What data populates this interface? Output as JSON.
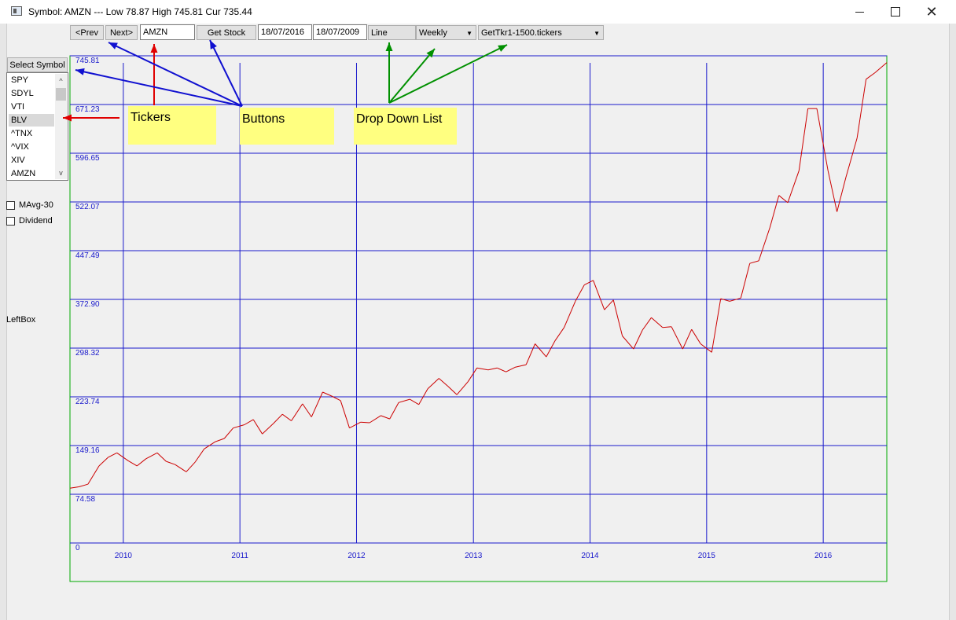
{
  "window": {
    "title": "Symbol:  AMZN  --- Low 78.87 High 745.81 Cur 735.44",
    "minimize_glyph": "",
    "maximize_glyph": "",
    "close_glyph": "✕"
  },
  "toolbar": {
    "prev_label": "<Prev",
    "next_label": "Next>",
    "ticker_value": "AMZN",
    "get_stock_label": "Get Stock",
    "end_date_value": "18/07/2016",
    "start_date_value": "18/07/2009",
    "chart_type_selected": "Line",
    "period_selected": "Weekly",
    "ticker_file_selected": "GetTkr1-1500.tickers"
  },
  "left_panel": {
    "select_symbol_label": "Select Symbol",
    "tickers": [
      "SPY",
      "SDYL",
      "VTI",
      "BLV",
      "^TNX",
      "^VIX",
      "XIV",
      "AMZN"
    ],
    "selected_ticker": "BLV",
    "options": [
      {
        "label": "MAvg-30",
        "checked": false
      },
      {
        "label": "Dividend",
        "checked": false
      }
    ],
    "leftbox_label": "LeftBox"
  },
  "annotations": {
    "tickers_label": "Tickers",
    "buttons_label": "Buttons",
    "dropdown_label": "Drop Down List",
    "colors": {
      "tickers": "#e00000",
      "buttons": "#1010d0",
      "dropdown": "#009000",
      "fill": "#ffff80"
    }
  },
  "chart_data": {
    "type": "line",
    "title": "",
    "xlabel": "",
    "ylabel": "",
    "ylim": [
      0,
      745.81
    ],
    "y_ticks": [
      "0",
      "74.58",
      "149.16",
      "223.74",
      "298.32",
      "372.90",
      "447.49",
      "522.07",
      "596.65",
      "671.23",
      "745.81"
    ],
    "x_ticks": [
      "2010",
      "2011",
      "2012",
      "2013",
      "2014",
      "2015",
      "2016"
    ],
    "x_range": [
      "2009-07-18",
      "2016-07-18"
    ],
    "grid": true,
    "colors": {
      "line": "#cc0000",
      "grid": "#1a1acc",
      "tick_text": "#1a1acc",
      "frame": "#00aa00"
    },
    "series": [
      {
        "name": "",
        "points": [
          [
            "2009-07-18",
            84
          ],
          [
            "2009-08-15",
            86
          ],
          [
            "2009-09-12",
            90
          ],
          [
            "2009-10-17",
            118
          ],
          [
            "2009-11-14",
            131
          ],
          [
            "2009-12-12",
            138
          ],
          [
            "2010-01-16",
            126
          ],
          [
            "2010-02-13",
            118
          ],
          [
            "2010-03-13",
            129
          ],
          [
            "2010-04-17",
            138
          ],
          [
            "2010-05-15",
            125
          ],
          [
            "2010-06-12",
            120
          ],
          [
            "2010-07-17",
            109
          ],
          [
            "2010-08-14",
            124
          ],
          [
            "2010-09-11",
            144
          ],
          [
            "2010-10-16",
            155
          ],
          [
            "2010-11-13",
            160
          ],
          [
            "2010-12-11",
            176
          ],
          [
            "2011-01-15",
            181
          ],
          [
            "2011-02-12",
            189
          ],
          [
            "2011-03-12",
            167
          ],
          [
            "2011-04-16",
            183
          ],
          [
            "2011-05-14",
            197
          ],
          [
            "2011-06-11",
            187
          ],
          [
            "2011-07-16",
            213
          ],
          [
            "2011-08-13",
            193
          ],
          [
            "2011-09-17",
            231
          ],
          [
            "2011-10-15",
            225
          ],
          [
            "2011-11-12",
            218
          ],
          [
            "2011-12-10",
            176
          ],
          [
            "2012-01-14",
            185
          ],
          [
            "2012-02-11",
            184
          ],
          [
            "2012-03-17",
            195
          ],
          [
            "2012-04-14",
            190
          ],
          [
            "2012-05-12",
            215
          ],
          [
            "2012-06-16",
            220
          ],
          [
            "2012-07-14",
            212
          ],
          [
            "2012-08-11",
            236
          ],
          [
            "2012-09-15",
            252
          ],
          [
            "2012-10-13",
            240
          ],
          [
            "2012-11-10",
            227
          ],
          [
            "2012-12-15",
            247
          ],
          [
            "2013-01-12",
            268
          ],
          [
            "2013-02-16",
            265
          ],
          [
            "2013-03-16",
            268
          ],
          [
            "2013-04-13",
            262
          ],
          [
            "2013-05-11",
            269
          ],
          [
            "2013-06-15",
            273
          ],
          [
            "2013-07-13",
            305
          ],
          [
            "2013-08-17",
            285
          ],
          [
            "2013-09-14",
            310
          ],
          [
            "2013-10-12",
            330
          ],
          [
            "2013-11-16",
            370
          ],
          [
            "2013-12-14",
            395
          ],
          [
            "2014-01-11",
            402
          ],
          [
            "2014-02-15",
            357
          ],
          [
            "2014-03-15",
            372
          ],
          [
            "2014-04-12",
            317
          ],
          [
            "2014-05-17",
            297
          ],
          [
            "2014-06-14",
            326
          ],
          [
            "2014-07-12",
            345
          ],
          [
            "2014-08-16",
            330
          ],
          [
            "2014-09-13",
            331
          ],
          [
            "2014-10-18",
            297
          ],
          [
            "2014-11-15",
            327
          ],
          [
            "2014-12-13",
            305
          ],
          [
            "2015-01-17",
            292
          ],
          [
            "2015-02-14",
            374
          ],
          [
            "2015-03-14",
            370
          ],
          [
            "2015-04-18",
            375
          ],
          [
            "2015-05-16",
            428
          ],
          [
            "2015-06-13",
            432
          ],
          [
            "2015-07-18",
            483
          ],
          [
            "2015-08-15",
            532
          ],
          [
            "2015-09-12",
            521
          ],
          [
            "2015-10-17",
            570
          ],
          [
            "2015-11-14",
            665
          ],
          [
            "2015-12-12",
            665
          ],
          [
            "2016-01-16",
            570
          ],
          [
            "2016-02-13",
            507
          ],
          [
            "2016-03-12",
            560
          ],
          [
            "2016-04-16",
            620
          ],
          [
            "2016-05-14",
            710
          ],
          [
            "2016-06-11",
            720
          ],
          [
            "2016-07-18",
            735.44
          ]
        ]
      }
    ]
  }
}
